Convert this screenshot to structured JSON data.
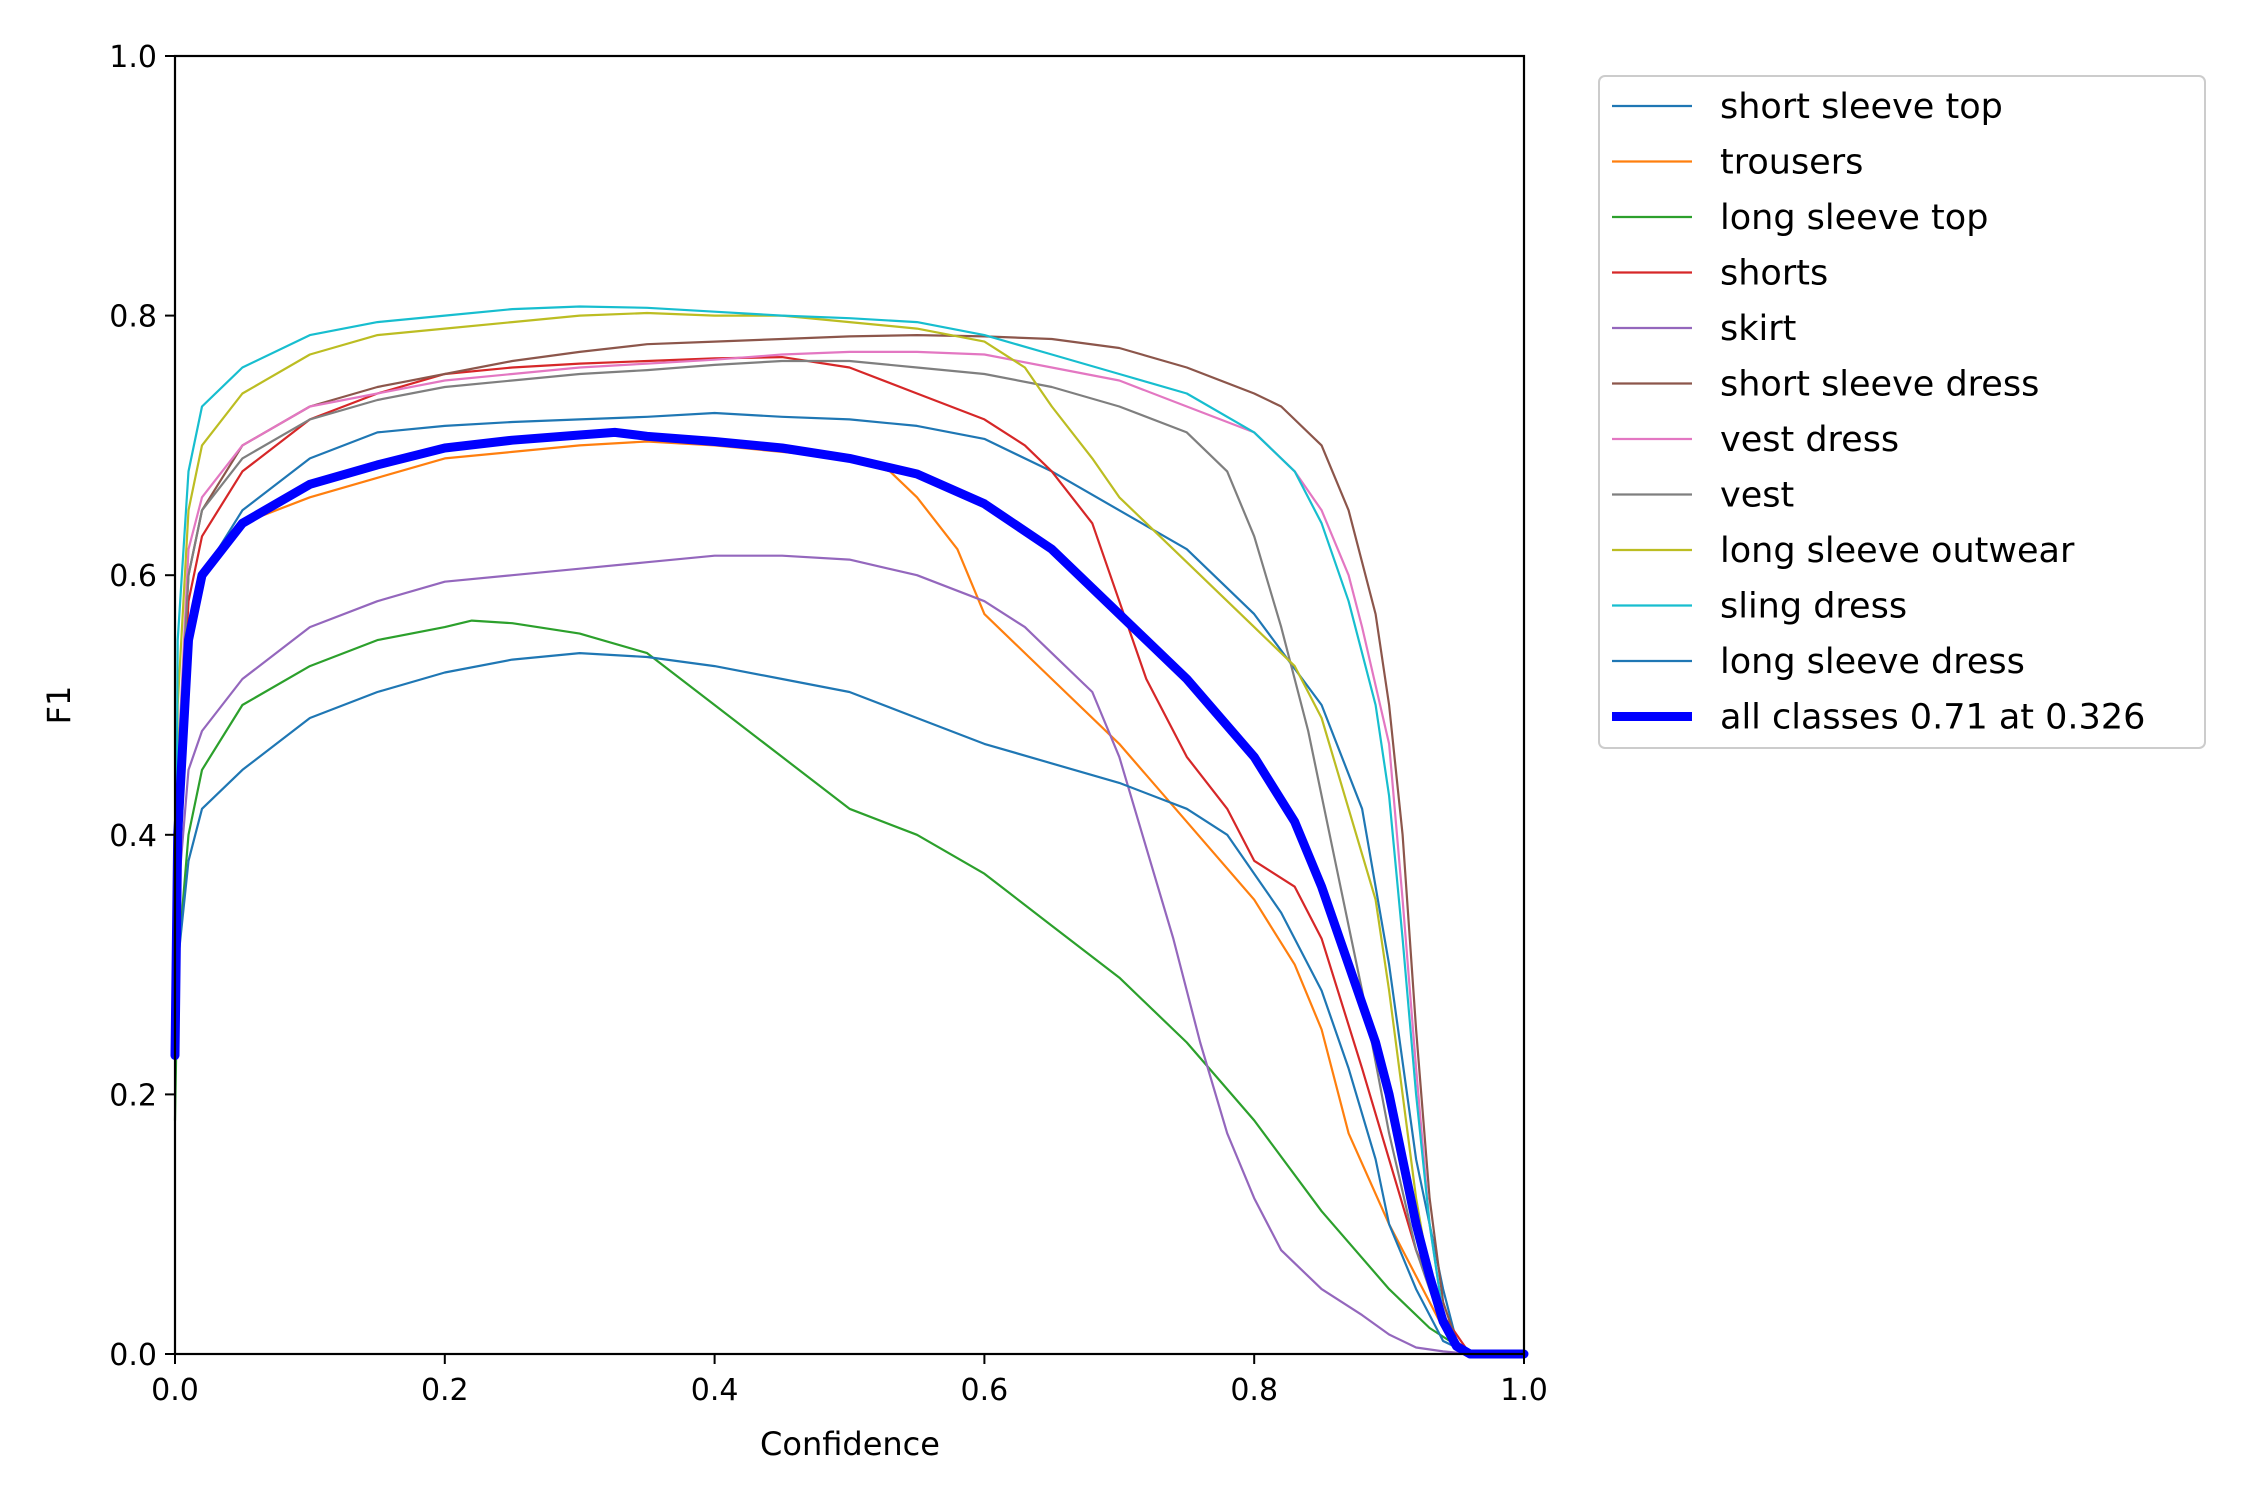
{
  "chart_data": {
    "type": "line",
    "title": "",
    "xlabel": "Confidence",
    "ylabel": "F1",
    "xlim": [
      0.0,
      1.0
    ],
    "ylim": [
      0.0,
      1.0
    ],
    "xticks": [
      "0.0",
      "0.2",
      "0.4",
      "0.6",
      "0.8",
      "1.0"
    ],
    "yticks": [
      "0.0",
      "0.2",
      "0.4",
      "0.6",
      "0.8",
      "1.0"
    ],
    "grid": false,
    "legend_position": "outside-right-top",
    "series": [
      {
        "name": "short sleeve top",
        "color": "#1f77b4",
        "x": [
          0.0,
          0.002,
          0.01,
          0.02,
          0.05,
          0.1,
          0.15,
          0.2,
          0.25,
          0.3,
          0.35,
          0.4,
          0.45,
          0.5,
          0.55,
          0.6,
          0.65,
          0.7,
          0.75,
          0.8,
          0.85,
          0.88,
          0.9,
          0.92,
          0.94,
          0.95,
          0.96,
          1.0
        ],
        "y": [
          0.23,
          0.35,
          0.55,
          0.6,
          0.65,
          0.69,
          0.71,
          0.715,
          0.718,
          0.72,
          0.722,
          0.725,
          0.722,
          0.72,
          0.715,
          0.705,
          0.68,
          0.65,
          0.62,
          0.57,
          0.5,
          0.42,
          0.3,
          0.15,
          0.05,
          0.01,
          0.0,
          0.0
        ]
      },
      {
        "name": "trousers",
        "color": "#ff7f0e",
        "x": [
          0.0,
          0.002,
          0.01,
          0.02,
          0.05,
          0.1,
          0.15,
          0.2,
          0.25,
          0.3,
          0.35,
          0.4,
          0.45,
          0.5,
          0.53,
          0.55,
          0.58,
          0.6,
          0.65,
          0.7,
          0.75,
          0.8,
          0.83,
          0.85,
          0.87,
          0.9,
          0.92,
          0.94,
          0.96,
          1.0
        ],
        "y": [
          0.23,
          0.4,
          0.55,
          0.6,
          0.64,
          0.66,
          0.675,
          0.69,
          0.695,
          0.7,
          0.703,
          0.7,
          0.695,
          0.69,
          0.68,
          0.66,
          0.62,
          0.57,
          0.52,
          0.47,
          0.41,
          0.35,
          0.3,
          0.25,
          0.17,
          0.1,
          0.06,
          0.02,
          0.0,
          0.0
        ]
      },
      {
        "name": "long sleeve top",
        "color": "#2ca02c",
        "x": [
          0.0,
          0.002,
          0.01,
          0.02,
          0.05,
          0.1,
          0.15,
          0.2,
          0.22,
          0.25,
          0.3,
          0.35,
          0.4,
          0.45,
          0.5,
          0.55,
          0.6,
          0.65,
          0.7,
          0.75,
          0.8,
          0.85,
          0.9,
          0.93,
          0.96,
          1.0
        ],
        "y": [
          0.18,
          0.3,
          0.4,
          0.45,
          0.5,
          0.53,
          0.55,
          0.56,
          0.565,
          0.563,
          0.555,
          0.54,
          0.5,
          0.46,
          0.42,
          0.4,
          0.37,
          0.33,
          0.29,
          0.24,
          0.18,
          0.11,
          0.05,
          0.02,
          0.0,
          0.0
        ]
      },
      {
        "name": "shorts",
        "color": "#d62728",
        "x": [
          0.0,
          0.002,
          0.01,
          0.02,
          0.05,
          0.1,
          0.15,
          0.2,
          0.25,
          0.3,
          0.35,
          0.4,
          0.45,
          0.5,
          0.55,
          0.6,
          0.63,
          0.65,
          0.68,
          0.7,
          0.72,
          0.75,
          0.78,
          0.8,
          0.83,
          0.85,
          0.88,
          0.9,
          0.92,
          0.94,
          0.96,
          1.0
        ],
        "y": [
          0.23,
          0.42,
          0.58,
          0.63,
          0.68,
          0.72,
          0.74,
          0.755,
          0.76,
          0.763,
          0.765,
          0.767,
          0.768,
          0.76,
          0.74,
          0.72,
          0.7,
          0.68,
          0.64,
          0.58,
          0.52,
          0.46,
          0.42,
          0.38,
          0.36,
          0.32,
          0.22,
          0.15,
          0.08,
          0.03,
          0.0,
          0.0
        ]
      },
      {
        "name": "skirt",
        "color": "#9467bd",
        "x": [
          0.0,
          0.002,
          0.01,
          0.02,
          0.05,
          0.1,
          0.15,
          0.2,
          0.25,
          0.3,
          0.35,
          0.4,
          0.45,
          0.5,
          0.55,
          0.6,
          0.63,
          0.65,
          0.68,
          0.7,
          0.72,
          0.74,
          0.76,
          0.78,
          0.8,
          0.82,
          0.85,
          0.88,
          0.9,
          0.92,
          0.94,
          0.96,
          1.0
        ],
        "y": [
          0.23,
          0.35,
          0.45,
          0.48,
          0.52,
          0.56,
          0.58,
          0.595,
          0.6,
          0.605,
          0.61,
          0.615,
          0.615,
          0.612,
          0.6,
          0.58,
          0.56,
          0.54,
          0.51,
          0.46,
          0.39,
          0.32,
          0.24,
          0.17,
          0.12,
          0.08,
          0.05,
          0.03,
          0.015,
          0.005,
          0.002,
          0.0,
          0.0
        ]
      },
      {
        "name": "short sleeve dress",
        "color": "#8c564b",
        "x": [
          0.0,
          0.002,
          0.01,
          0.02,
          0.05,
          0.1,
          0.15,
          0.2,
          0.25,
          0.3,
          0.35,
          0.4,
          0.45,
          0.5,
          0.55,
          0.6,
          0.65,
          0.7,
          0.75,
          0.8,
          0.82,
          0.85,
          0.87,
          0.89,
          0.9,
          0.91,
          0.92,
          0.93,
          0.94,
          0.95,
          0.96,
          1.0
        ],
        "y": [
          0.23,
          0.45,
          0.6,
          0.65,
          0.7,
          0.73,
          0.745,
          0.755,
          0.765,
          0.772,
          0.778,
          0.78,
          0.782,
          0.784,
          0.785,
          0.784,
          0.782,
          0.775,
          0.76,
          0.74,
          0.73,
          0.7,
          0.65,
          0.57,
          0.5,
          0.4,
          0.25,
          0.12,
          0.04,
          0.01,
          0.0,
          0.0
        ]
      },
      {
        "name": "vest dress",
        "color": "#e377c2",
        "x": [
          0.0,
          0.002,
          0.01,
          0.02,
          0.05,
          0.1,
          0.15,
          0.2,
          0.25,
          0.3,
          0.35,
          0.4,
          0.45,
          0.5,
          0.55,
          0.6,
          0.65,
          0.7,
          0.75,
          0.8,
          0.83,
          0.85,
          0.87,
          0.88,
          0.9,
          0.91,
          0.92,
          0.93,
          0.94,
          0.95,
          0.96,
          1.0
        ],
        "y": [
          0.23,
          0.45,
          0.62,
          0.66,
          0.7,
          0.73,
          0.74,
          0.75,
          0.755,
          0.76,
          0.763,
          0.766,
          0.77,
          0.772,
          0.772,
          0.77,
          0.76,
          0.75,
          0.73,
          0.71,
          0.68,
          0.65,
          0.6,
          0.56,
          0.47,
          0.35,
          0.22,
          0.1,
          0.03,
          0.01,
          0.0,
          0.0
        ]
      },
      {
        "name": "vest",
        "color": "#7f7f7f",
        "x": [
          0.0,
          0.002,
          0.01,
          0.02,
          0.05,
          0.1,
          0.15,
          0.2,
          0.25,
          0.3,
          0.35,
          0.4,
          0.45,
          0.5,
          0.55,
          0.6,
          0.65,
          0.7,
          0.75,
          0.78,
          0.8,
          0.82,
          0.84,
          0.86,
          0.88,
          0.9,
          0.92,
          0.94,
          0.96,
          1.0
        ],
        "y": [
          0.23,
          0.45,
          0.6,
          0.65,
          0.69,
          0.72,
          0.735,
          0.745,
          0.75,
          0.755,
          0.758,
          0.762,
          0.765,
          0.765,
          0.76,
          0.755,
          0.745,
          0.73,
          0.71,
          0.68,
          0.63,
          0.56,
          0.48,
          0.38,
          0.28,
          0.17,
          0.08,
          0.02,
          0.0,
          0.0
        ]
      },
      {
        "name": "long sleeve outwear",
        "color": "#bcbd22",
        "x": [
          0.0,
          0.002,
          0.01,
          0.02,
          0.05,
          0.1,
          0.15,
          0.2,
          0.25,
          0.3,
          0.35,
          0.4,
          0.45,
          0.5,
          0.55,
          0.6,
          0.63,
          0.65,
          0.68,
          0.7,
          0.75,
          0.8,
          0.83,
          0.85,
          0.87,
          0.89,
          0.9,
          0.91,
          0.92,
          0.93,
          0.94,
          0.96,
          1.0
        ],
        "y": [
          0.23,
          0.5,
          0.65,
          0.7,
          0.74,
          0.77,
          0.785,
          0.79,
          0.795,
          0.8,
          0.802,
          0.8,
          0.8,
          0.795,
          0.79,
          0.78,
          0.76,
          0.73,
          0.69,
          0.66,
          0.61,
          0.56,
          0.53,
          0.49,
          0.42,
          0.35,
          0.28,
          0.2,
          0.12,
          0.06,
          0.02,
          0.0,
          0.0
        ]
      },
      {
        "name": "sling dress",
        "color": "#17becf",
        "x": [
          0.0,
          0.002,
          0.01,
          0.02,
          0.05,
          0.1,
          0.15,
          0.2,
          0.25,
          0.3,
          0.35,
          0.4,
          0.45,
          0.5,
          0.55,
          0.6,
          0.65,
          0.7,
          0.75,
          0.8,
          0.83,
          0.85,
          0.87,
          0.89,
          0.9,
          0.91,
          0.92,
          0.93,
          0.94,
          0.95,
          0.96,
          1.0
        ],
        "y": [
          0.23,
          0.55,
          0.68,
          0.73,
          0.76,
          0.785,
          0.795,
          0.8,
          0.805,
          0.807,
          0.806,
          0.803,
          0.8,
          0.798,
          0.795,
          0.785,
          0.77,
          0.755,
          0.74,
          0.71,
          0.68,
          0.64,
          0.58,
          0.5,
          0.43,
          0.32,
          0.2,
          0.1,
          0.03,
          0.01,
          0.0,
          0.0
        ]
      },
      {
        "name": "long sleeve dress",
        "color": "#1f77b4",
        "x": [
          0.0,
          0.002,
          0.01,
          0.02,
          0.05,
          0.1,
          0.15,
          0.2,
          0.25,
          0.3,
          0.35,
          0.4,
          0.45,
          0.5,
          0.55,
          0.6,
          0.65,
          0.7,
          0.75,
          0.78,
          0.8,
          0.82,
          0.85,
          0.87,
          0.89,
          0.9,
          0.92,
          0.94,
          0.96,
          1.0
        ],
        "y": [
          0.23,
          0.3,
          0.38,
          0.42,
          0.45,
          0.49,
          0.51,
          0.525,
          0.535,
          0.54,
          0.537,
          0.53,
          0.52,
          0.51,
          0.49,
          0.47,
          0.455,
          0.44,
          0.42,
          0.4,
          0.37,
          0.34,
          0.28,
          0.22,
          0.15,
          0.1,
          0.05,
          0.01,
          0.0,
          0.0
        ]
      },
      {
        "name": "all classes 0.71 at 0.326",
        "color": "#0000ff",
        "bold": true,
        "x": [
          0.0,
          0.002,
          0.01,
          0.02,
          0.05,
          0.1,
          0.15,
          0.2,
          0.25,
          0.3,
          0.326,
          0.35,
          0.4,
          0.45,
          0.5,
          0.55,
          0.6,
          0.65,
          0.7,
          0.75,
          0.8,
          0.83,
          0.85,
          0.87,
          0.89,
          0.9,
          0.91,
          0.92,
          0.93,
          0.94,
          0.95,
          0.96,
          1.0
        ],
        "y": [
          0.23,
          0.4,
          0.55,
          0.6,
          0.64,
          0.67,
          0.685,
          0.698,
          0.704,
          0.708,
          0.71,
          0.707,
          0.703,
          0.698,
          0.69,
          0.678,
          0.655,
          0.62,
          0.57,
          0.52,
          0.46,
          0.41,
          0.36,
          0.3,
          0.24,
          0.2,
          0.15,
          0.1,
          0.06,
          0.025,
          0.006,
          0.0,
          0.0
        ]
      }
    ]
  }
}
